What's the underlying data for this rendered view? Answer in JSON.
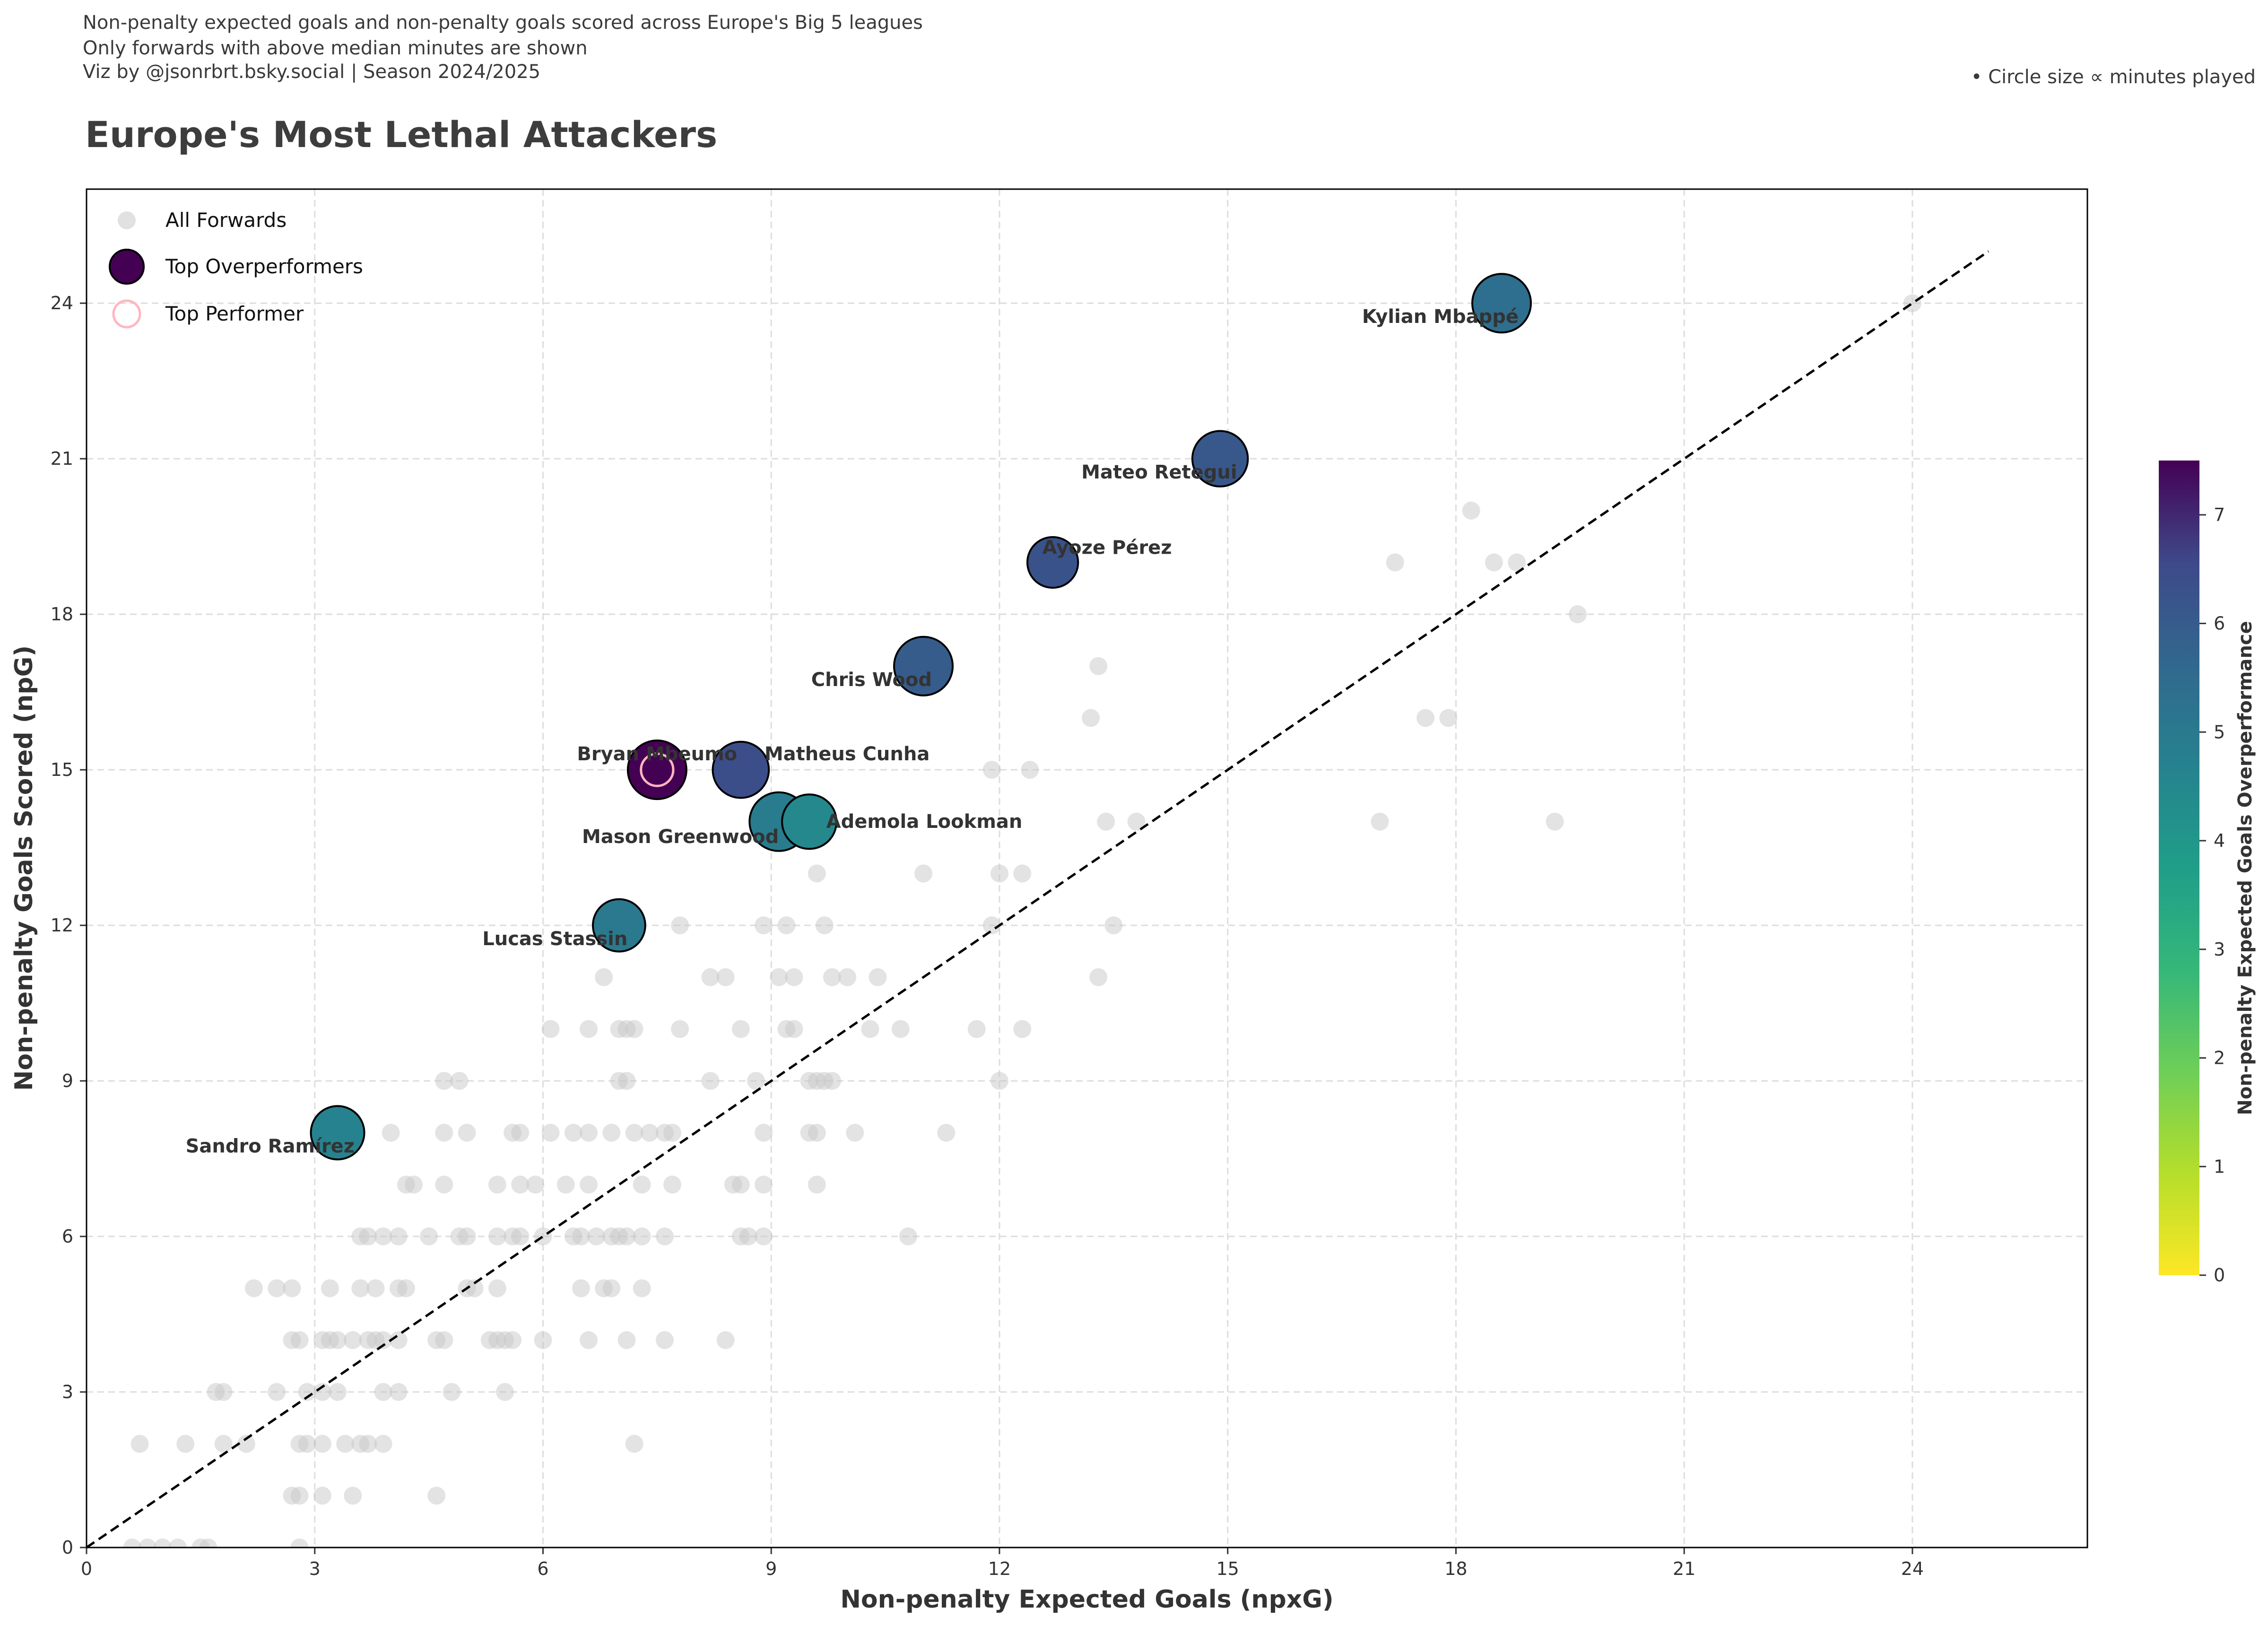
{
  "captions": {
    "line1": "Non-penalty expected goals and non-penalty goals scored across Europe's Big 5 leagues",
    "line2": "Only forwards with above median minutes are shown",
    "line3": "Viz by @jsonrbrt.bsky.social | Season 2024/2025"
  },
  "size_note": "• Circle size ∝ minutes played",
  "colors": {
    "background_points": "#c8c8c8",
    "reference_line": "#000000",
    "highlight_ring": "#ffb6c1",
    "label_text": "#333333",
    "grid": "#dddddd"
  },
  "chart_data": {
    "type": "scatter",
    "title": "Europe's Most Lethal Attackers",
    "xlabel": "Non-penalty Expected Goals (npxG)",
    "ylabel": "Non-penalty Goals Scored (npG)",
    "xlim": [
      0,
      26.3
    ],
    "ylim": [
      0,
      26.2
    ],
    "xticks": [
      0,
      3,
      6,
      9,
      12,
      15,
      18,
      21,
      24
    ],
    "yticks": [
      0,
      3,
      6,
      9,
      12,
      15,
      18,
      21,
      24
    ],
    "grid": true,
    "legend_position": "top-left",
    "legend": [
      "All Forwards",
      "Top Overperformers",
      "Top Performer"
    ],
    "reference_line": {
      "from": [
        0,
        0
      ],
      "to": [
        25,
        25
      ],
      "style": "dashed"
    },
    "colorbar": {
      "label": "Non-penalty Expected Goals Overperformance",
      "range": [
        0,
        7.5
      ],
      "ticks": [
        0,
        1,
        2,
        3,
        4,
        5,
        6,
        7
      ],
      "colormap": "viridis"
    },
    "all_forwards": [
      [
        24.0,
        24
      ],
      [
        18.2,
        20
      ],
      [
        17.2,
        19
      ],
      [
        18.5,
        19
      ],
      [
        18.8,
        19
      ],
      [
        19.6,
        18
      ],
      [
        13.3,
        17
      ],
      [
        13.2,
        16
      ],
      [
        17.6,
        16
      ],
      [
        17.9,
        16
      ],
      [
        11.9,
        15
      ],
      [
        12.4,
        15
      ],
      [
        17.0,
        14
      ],
      [
        19.3,
        14
      ],
      [
        13.4,
        14
      ],
      [
        13.8,
        14
      ],
      [
        9.6,
        13
      ],
      [
        11.0,
        13
      ],
      [
        12.0,
        13
      ],
      [
        12.3,
        13
      ],
      [
        7.8,
        12
      ],
      [
        8.9,
        12
      ],
      [
        9.2,
        12
      ],
      [
        9.7,
        12
      ],
      [
        11.9,
        12
      ],
      [
        13.5,
        12
      ],
      [
        6.8,
        11
      ],
      [
        8.2,
        11
      ],
      [
        8.4,
        11
      ],
      [
        9.1,
        11
      ],
      [
        9.3,
        11
      ],
      [
        9.8,
        11
      ],
      [
        10.0,
        11
      ],
      [
        10.4,
        11
      ],
      [
        13.3,
        11
      ],
      [
        6.1,
        10
      ],
      [
        6.6,
        10
      ],
      [
        7.0,
        10
      ],
      [
        7.1,
        10
      ],
      [
        7.2,
        10
      ],
      [
        7.8,
        10
      ],
      [
        8.6,
        10
      ],
      [
        9.2,
        10
      ],
      [
        9.3,
        10
      ],
      [
        10.3,
        10
      ],
      [
        10.7,
        10
      ],
      [
        11.7,
        10
      ],
      [
        12.3,
        10
      ],
      [
        4.7,
        9
      ],
      [
        4.9,
        9
      ],
      [
        7.0,
        9
      ],
      [
        7.1,
        9
      ],
      [
        8.2,
        9
      ],
      [
        8.8,
        9
      ],
      [
        9.5,
        9
      ],
      [
        9.6,
        9
      ],
      [
        9.7,
        9
      ],
      [
        9.8,
        9
      ],
      [
        12.0,
        9
      ],
      [
        4.0,
        8
      ],
      [
        4.7,
        8
      ],
      [
        5.0,
        8
      ],
      [
        5.6,
        8
      ],
      [
        5.7,
        8
      ],
      [
        6.1,
        8
      ],
      [
        6.4,
        8
      ],
      [
        6.6,
        8
      ],
      [
        6.9,
        8
      ],
      [
        7.2,
        8
      ],
      [
        7.4,
        8
      ],
      [
        7.6,
        8
      ],
      [
        7.7,
        8
      ],
      [
        8.9,
        8
      ],
      [
        9.5,
        8
      ],
      [
        9.6,
        8
      ],
      [
        10.1,
        8
      ],
      [
        11.3,
        8
      ],
      [
        4.2,
        7
      ],
      [
        4.3,
        7
      ],
      [
        4.7,
        7
      ],
      [
        5.4,
        7
      ],
      [
        5.7,
        7
      ],
      [
        5.9,
        7
      ],
      [
        6.3,
        7
      ],
      [
        6.6,
        7
      ],
      [
        7.3,
        7
      ],
      [
        7.7,
        7
      ],
      [
        8.5,
        7
      ],
      [
        8.6,
        7
      ],
      [
        8.9,
        7
      ],
      [
        9.6,
        7
      ],
      [
        3.6,
        6
      ],
      [
        3.7,
        6
      ],
      [
        3.9,
        6
      ],
      [
        4.1,
        6
      ],
      [
        4.5,
        6
      ],
      [
        4.9,
        6
      ],
      [
        5.0,
        6
      ],
      [
        5.4,
        6
      ],
      [
        5.6,
        6
      ],
      [
        5.7,
        6
      ],
      [
        6.0,
        6
      ],
      [
        6.4,
        6
      ],
      [
        6.5,
        6
      ],
      [
        6.7,
        6
      ],
      [
        6.9,
        6
      ],
      [
        7.0,
        6
      ],
      [
        7.1,
        6
      ],
      [
        7.3,
        6
      ],
      [
        7.6,
        6
      ],
      [
        8.6,
        6
      ],
      [
        8.7,
        6
      ],
      [
        8.9,
        6
      ],
      [
        10.8,
        6
      ],
      [
        2.2,
        5
      ],
      [
        2.5,
        5
      ],
      [
        2.7,
        5
      ],
      [
        3.2,
        5
      ],
      [
        3.6,
        5
      ],
      [
        3.8,
        5
      ],
      [
        4.1,
        5
      ],
      [
        4.2,
        5
      ],
      [
        5.0,
        5
      ],
      [
        5.1,
        5
      ],
      [
        5.4,
        5
      ],
      [
        6.5,
        5
      ],
      [
        6.8,
        5
      ],
      [
        6.9,
        5
      ],
      [
        7.3,
        5
      ],
      [
        2.7,
        4
      ],
      [
        2.8,
        4
      ],
      [
        3.1,
        4
      ],
      [
        3.2,
        4
      ],
      [
        3.3,
        4
      ],
      [
        3.5,
        4
      ],
      [
        3.7,
        4
      ],
      [
        3.8,
        4
      ],
      [
        3.9,
        4
      ],
      [
        4.1,
        4
      ],
      [
        4.6,
        4
      ],
      [
        4.7,
        4
      ],
      [
        5.3,
        4
      ],
      [
        5.4,
        4
      ],
      [
        5.5,
        4
      ],
      [
        5.6,
        4
      ],
      [
        6.0,
        4
      ],
      [
        6.6,
        4
      ],
      [
        7.1,
        4
      ],
      [
        7.6,
        4
      ],
      [
        8.4,
        4
      ],
      [
        1.7,
        3
      ],
      [
        1.8,
        3
      ],
      [
        2.5,
        3
      ],
      [
        2.9,
        3
      ],
      [
        3.1,
        3
      ],
      [
        3.3,
        3
      ],
      [
        3.9,
        3
      ],
      [
        4.1,
        3
      ],
      [
        4.8,
        3
      ],
      [
        5.5,
        3
      ],
      [
        0.7,
        2
      ],
      [
        1.3,
        2
      ],
      [
        1.8,
        2
      ],
      [
        2.1,
        2
      ],
      [
        2.8,
        2
      ],
      [
        2.9,
        2
      ],
      [
        3.1,
        2
      ],
      [
        3.4,
        2
      ],
      [
        3.6,
        2
      ],
      [
        3.7,
        2
      ],
      [
        3.9,
        2
      ],
      [
        7.2,
        2
      ],
      [
        2.7,
        1
      ],
      [
        2.8,
        1
      ],
      [
        3.1,
        1
      ],
      [
        3.5,
        1
      ],
      [
        4.6,
        1
      ],
      [
        0.6,
        0
      ],
      [
        0.8,
        0
      ],
      [
        1.0,
        0
      ],
      [
        1.2,
        0
      ],
      [
        1.5,
        0
      ],
      [
        1.6,
        0
      ],
      [
        2.8,
        0
      ]
    ],
    "top_overperformers": [
      {
        "name": "Kylian Mbappé",
        "x": 18.6,
        "y": 24,
        "overperformance": 5.4,
        "minutes_rank": 1.0
      },
      {
        "name": "Mateo Retegui",
        "x": 14.9,
        "y": 21,
        "overperformance": 6.1,
        "minutes_rank": 0.85
      },
      {
        "name": "Ayoze Pérez",
        "x": 12.7,
        "y": 19,
        "overperformance": 6.3,
        "minutes_rank": 0.62
      },
      {
        "name": "Chris Wood",
        "x": 11.0,
        "y": 17,
        "overperformance": 6.0,
        "minutes_rank": 1.0
      },
      {
        "name": "Bryan Mbeumo",
        "x": 7.5,
        "y": 15,
        "overperformance": 7.5,
        "minutes_rank": 1.0
      },
      {
        "name": "Matheus Cunha",
        "x": 8.6,
        "y": 15,
        "overperformance": 6.4,
        "minutes_rank": 0.88
      },
      {
        "name": "Mason Greenwood",
        "x": 9.1,
        "y": 14,
        "overperformance": 4.9,
        "minutes_rank": 1.0
      },
      {
        "name": "Ademola Lookman",
        "x": 9.5,
        "y": 14,
        "overperformance": 4.5,
        "minutes_rank": 0.8
      },
      {
        "name": "Lucas Stassin",
        "x": 7.0,
        "y": 12,
        "overperformance": 5.0,
        "minutes_rank": 0.7
      },
      {
        "name": "Sandro Ramírez",
        "x": 3.3,
        "y": 8,
        "overperformance": 4.7,
        "minutes_rank": 0.75
      }
    ],
    "top_performer": "Bryan Mbeumo"
  }
}
